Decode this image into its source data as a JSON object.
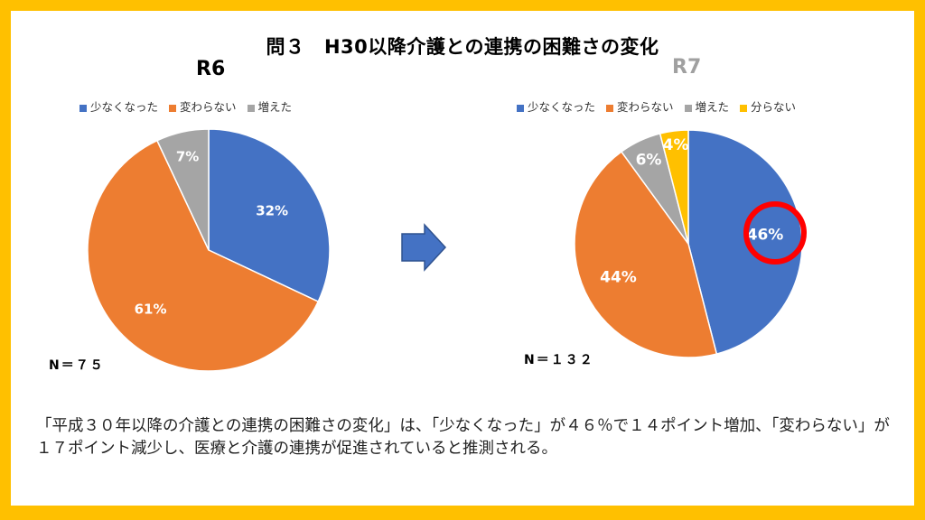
{
  "title": "問３　H30以降介護との連携の困難さの変化",
  "colors": {
    "blue": "#4472C4",
    "orange": "#ED7D31",
    "gray": "#A5A5A5",
    "yellow": "#FFC000",
    "highlight": "#FF0000",
    "border": "#FFC000"
  },
  "chart_data": [
    {
      "type": "pie",
      "title": "R6",
      "n_label": "N＝７５",
      "legend": [
        "少なくなった",
        "変わらない",
        "増えた"
      ],
      "values": [
        32,
        61,
        7
      ],
      "labels": [
        "32%",
        "61%",
        "7%"
      ],
      "colors": [
        "#4472C4",
        "#ED7D31",
        "#A5A5A5"
      ]
    },
    {
      "type": "pie",
      "title": "R7",
      "n_label": "N＝１３２",
      "legend": [
        "少なくなった",
        "変わらない",
        "増えた",
        "分らない"
      ],
      "values": [
        46,
        44,
        6,
        4
      ],
      "labels": [
        "46%",
        "44%",
        "6%",
        "4%"
      ],
      "colors": [
        "#4472C4",
        "#ED7D31",
        "#A5A5A5",
        "#FFC000"
      ],
      "highlighted": "46%"
    }
  ],
  "summary": "「平成３０年以降の介護との連携の困難さの変化」は、「少なくなった」が４６％で１４ポイント増加、「変わらない」が１７ポイント減少し、医療と介護の連携が促進されていると推測される。"
}
